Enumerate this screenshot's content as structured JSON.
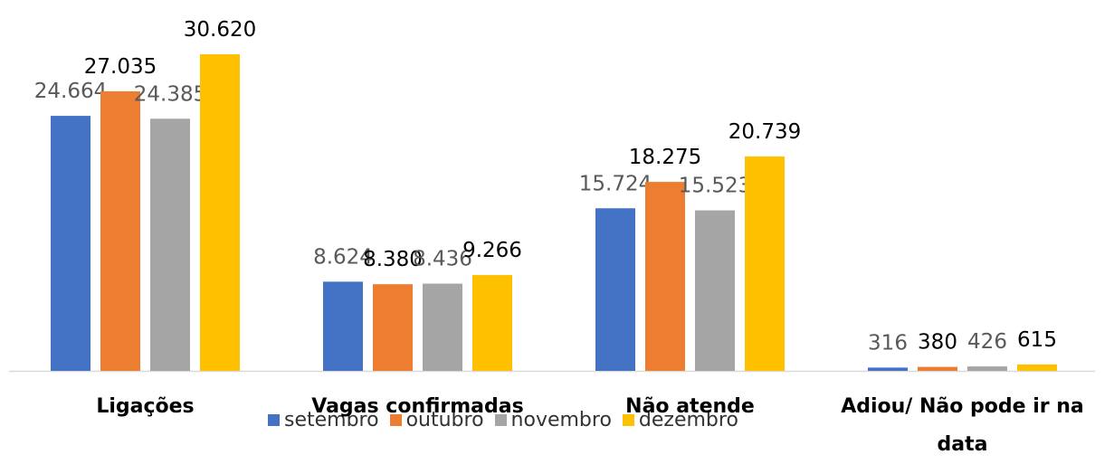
{
  "chart_data": {
    "type": "bar",
    "categories": [
      "Ligações",
      "Vagas confirmadas",
      "Não atende",
      "Adiou/ Não pode ir na data"
    ],
    "series": [
      {
        "name": "setembro",
        "color": "#4472c4",
        "values": [
          24664,
          8624,
          15724,
          316
        ],
        "value_labels": [
          "24.664",
          "8.624",
          "15.724",
          "316"
        ]
      },
      {
        "name": "outubro",
        "color": "#ed7d31",
        "values": [
          27035,
          8380,
          18275,
          380
        ],
        "value_labels": [
          "27.035",
          "8.380",
          "18.275",
          "380"
        ]
      },
      {
        "name": "novembro",
        "color": "#a5a5a5",
        "values": [
          24385,
          8436,
          15523,
          426
        ],
        "value_labels": [
          "24.385",
          "8.436",
          "15.523",
          "426"
        ]
      },
      {
        "name": "dezembro",
        "color": "#ffc000",
        "values": [
          30620,
          9266,
          20739,
          615
        ],
        "value_labels": [
          "30.620",
          "9.266",
          "20.739",
          "615"
        ]
      }
    ],
    "legend": "bottom"
  }
}
